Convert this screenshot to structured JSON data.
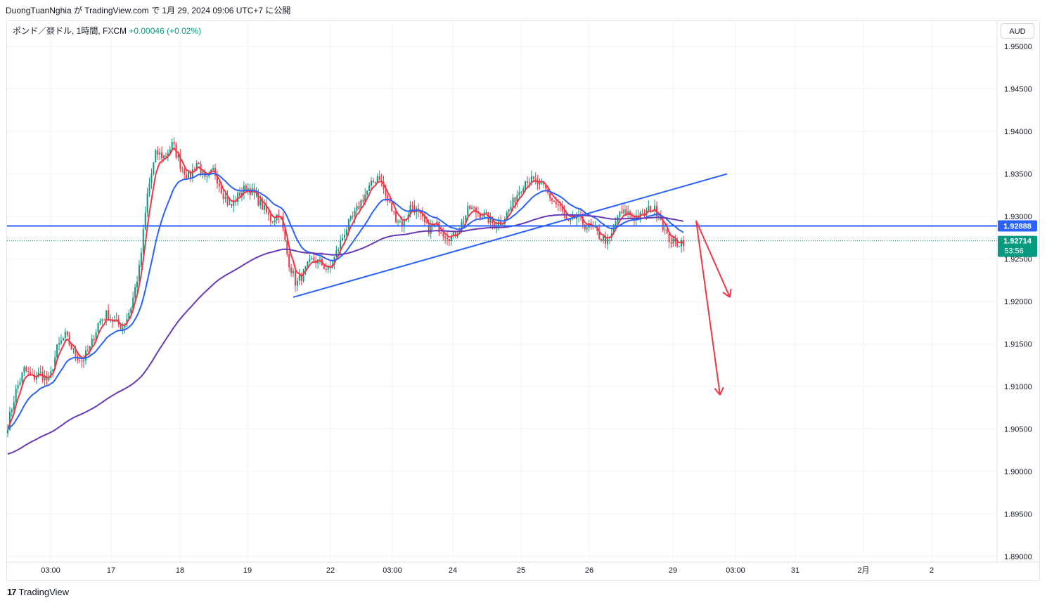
{
  "header": {
    "publisher_line": "DuongTuanNghia が TradingView.com で 1月 29, 2024 09:06 UTC+7 に公開"
  },
  "symbol": {
    "name": "ポンド／豪ドル, 1時間, FXCM",
    "change": "+0.00046 (+0.02%)"
  },
  "currency": "AUD",
  "footer": {
    "logo_mark": "17",
    "logo_text": "TradingView"
  },
  "colors": {
    "bull": "#089981",
    "bear": "#f23645",
    "ema_fast": "#f23645",
    "ema_mid": "#2962ff",
    "ema_slow": "#673ab7",
    "hline": "#2962ff",
    "trend": "#2962ff",
    "arrow": "#f23645",
    "grid": "#f0f3fa"
  },
  "chart_data": {
    "type": "candlestick",
    "symbol": "GBPAUD",
    "timeframe": "1h",
    "ylim": [
      1.8875,
      1.9525
    ],
    "y_ticks": [
      "1.95000",
      "1.94500",
      "1.94000",
      "1.93500",
      "1.93000",
      "1.92500",
      "1.92000",
      "1.91500",
      "1.91000",
      "1.90500",
      "1.90000",
      "1.89500",
      "1.89000"
    ],
    "x_ticks": [
      "03:00",
      "17",
      "18",
      "19",
      "22",
      "03:00",
      "24",
      "25",
      "26",
      "29",
      "03:00",
      "31",
      "2月",
      "2"
    ],
    "horizontal_line": {
      "price": 1.92888,
      "label": "1.92888"
    },
    "last_price": {
      "price": 1.92714,
      "label": "1.92714",
      "countdown": "53:56"
    },
    "price_path": [
      1.9055,
      1.9095,
      1.912,
      1.911,
      1.9115,
      1.9105,
      1.9145,
      1.916,
      1.914,
      1.913,
      1.9145,
      1.9175,
      1.9185,
      1.9175,
      1.917,
      1.9195,
      1.924,
      1.933,
      1.9375,
      1.937,
      1.9385,
      1.936,
      1.9345,
      1.9365,
      1.934,
      1.9355,
      1.933,
      1.931,
      1.9325,
      1.9335,
      1.9325,
      1.931,
      1.9295,
      1.9305,
      1.925,
      1.922,
      1.9235,
      1.925,
      1.9245,
      1.9235,
      1.926,
      1.9285,
      1.93,
      1.932,
      1.9335,
      1.935,
      1.932,
      1.93,
      1.929,
      1.9315,
      1.93,
      1.9285,
      1.929,
      1.928,
      1.9275,
      1.929,
      1.931,
      1.9305,
      1.93,
      1.929,
      1.9295,
      1.931,
      1.933,
      1.9345,
      1.934,
      1.9335,
      1.932,
      1.931,
      1.929,
      1.93,
      1.929,
      1.9285,
      1.9275,
      1.927,
      1.93,
      1.9305,
      1.93,
      1.93,
      1.931,
      1.9305,
      1.9275,
      1.9268,
      1.9271
    ],
    "series": [
      {
        "name": "EMA fast",
        "color": "#f23645"
      },
      {
        "name": "EMA mid",
        "color": "#2962ff"
      },
      {
        "name": "EMA slow",
        "color": "#673ab7"
      }
    ],
    "trendline": {
      "from": [
        "19 18:00",
        1.9205
      ],
      "to": [
        "29 23:00",
        1.935
      ]
    },
    "projection_arrows": [
      {
        "from": [
          "29 02:00",
          1.9295
        ],
        "to": [
          "29 20:00",
          1.9205
        ]
      },
      {
        "from": [
          "29 02:00",
          1.9295
        ],
        "to": [
          "29 14:00",
          1.909
        ]
      }
    ]
  }
}
